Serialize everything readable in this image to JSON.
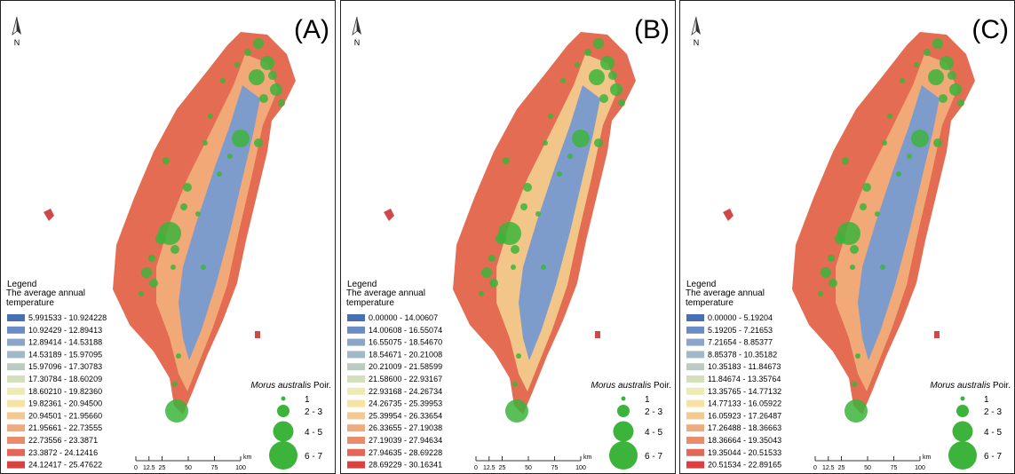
{
  "panels": [
    {
      "label": "(A)",
      "north": "N",
      "legend_title": "Legend",
      "legend_subtitle": "The average annual temperature",
      "legend_items": [
        {
          "label": "5.991533 - 10.924228",
          "color": "#4a70b4"
        },
        {
          "label": "10.92429 - 12.89413",
          "color": "#6a8cc2"
        },
        {
          "label": "12.89414 - 14.53188",
          "color": "#8aa5c8"
        },
        {
          "label": "14.53189 - 15.97095",
          "color": "#a2b7c8"
        },
        {
          "label": "15.97096 - 17.30783",
          "color": "#bccbc2"
        },
        {
          "label": "17.30784 - 18.60209",
          "color": "#d4e0bc"
        },
        {
          "label": "18.60210 - 19.82360",
          "color": "#ecebb4"
        },
        {
          "label": "19.82361 - 20.94500",
          "color": "#f8e2a2"
        },
        {
          "label": "20.94501 - 21.95660",
          "color": "#f5c890"
        },
        {
          "label": "21.95661 - 22.73555",
          "color": "#efaa7e"
        },
        {
          "label": "22.73556 - 23.3871",
          "color": "#e98c6c"
        },
        {
          "label": "23.3872 - 24.12416",
          "color": "#e2685a"
        },
        {
          "label": "24.12417 - 25.47622",
          "color": "#d94242"
        }
      ],
      "species_name": "Morus australis",
      "species_author": "Poir.",
      "sizes": [
        "1",
        "2 - 3",
        "4 - 5",
        "6 - 7"
      ],
      "scale_ticks": [
        0,
        12.5,
        25,
        50,
        75,
        100
      ],
      "scale_unit": "km"
    },
    {
      "label": "(B)",
      "north": "N",
      "legend_title": "Legend",
      "legend_subtitle": "The average annual temperature",
      "legend_items": [
        {
          "label": "0.00000 - 14.00607",
          "color": "#4a70b4"
        },
        {
          "label": "14.00608 - 16.55074",
          "color": "#6a8cc2"
        },
        {
          "label": "16.55075 - 18.54670",
          "color": "#8aa5c8"
        },
        {
          "label": "18.54671 - 20.21008",
          "color": "#a2b7c8"
        },
        {
          "label": "20.21009 - 21.58599",
          "color": "#bccbc2"
        },
        {
          "label": "21.58600 - 22.93167",
          "color": "#d4e0bc"
        },
        {
          "label": "22.93168 - 24.26734",
          "color": "#ecebb4"
        },
        {
          "label": "24.26735 - 25.39953",
          "color": "#f8e2a2"
        },
        {
          "label": "25.39954 - 26.33654",
          "color": "#f5c890"
        },
        {
          "label": "26.33655 - 27.19038",
          "color": "#efaa7e"
        },
        {
          "label": "27.19039 - 27.94634",
          "color": "#e98c6c"
        },
        {
          "label": "27.94635 - 28.69228",
          "color": "#e2685a"
        },
        {
          "label": "28.69229 - 30.16341",
          "color": "#d94242"
        }
      ],
      "species_name": "Morus australis",
      "species_author": "Poir.",
      "sizes": [
        "1",
        "2 - 3",
        "4 - 5",
        "6 - 7"
      ],
      "scale_ticks": [
        0,
        12.5,
        25,
        50,
        75,
        100
      ],
      "scale_unit": "km"
    },
    {
      "label": "(C)",
      "north": "N",
      "legend_title": "Legend",
      "legend_subtitle": "The average annual temperature",
      "legend_items": [
        {
          "label": "0.00000 - 5.19204",
          "color": "#4a70b4"
        },
        {
          "label": "5.19205 - 7.21653",
          "color": "#6a8cc2"
        },
        {
          "label": "7.21654 - 8.85377",
          "color": "#8aa5c8"
        },
        {
          "label": "8.85378 - 10.35182",
          "color": "#a2b7c8"
        },
        {
          "label": "10.35183 - 11.84673",
          "color": "#bccbc2"
        },
        {
          "label": "11.84674 - 13.35764",
          "color": "#d4e0bc"
        },
        {
          "label": "13.35765 - 14.77132",
          "color": "#ecebb4"
        },
        {
          "label": "14.77133 - 16.05922",
          "color": "#f8e2a2"
        },
        {
          "label": "16.05923 - 17.26487",
          "color": "#f5c890"
        },
        {
          "label": "17.26488 - 18.36663",
          "color": "#efaa7e"
        },
        {
          "label": "18.36664 - 19.35043",
          "color": "#e98c6c"
        },
        {
          "label": "19.35044 - 20.51533",
          "color": "#e2685a"
        },
        {
          "label": "20.51534 - 22.89165",
          "color": "#d94242"
        }
      ],
      "species_name": "Morus australis",
      "species_author": "Poir.",
      "sizes": [
        "1",
        "2 - 3",
        "4 - 5",
        "6 - 7"
      ],
      "scale_ticks": [
        0,
        12.5,
        25,
        50,
        75,
        100
      ],
      "scale_unit": "km"
    }
  ]
}
